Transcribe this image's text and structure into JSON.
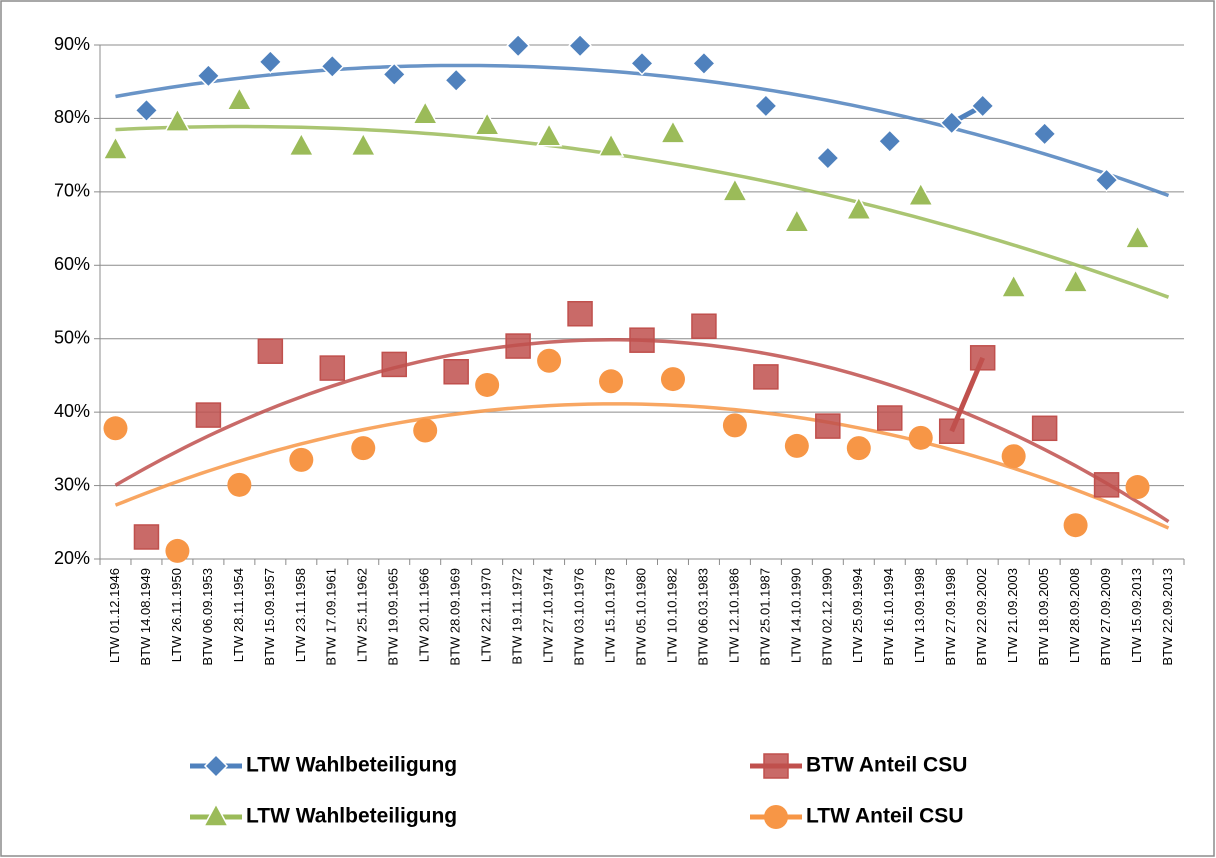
{
  "chart_data": {
    "type": "line",
    "categories": [
      "LTW 01.12.1946",
      "BTW 14.08.1949",
      "LTW 26.11.1950",
      "BTW 06.09.1953",
      "LTW 28.11.1954",
      "BTW 15.09.1957",
      "LTW 23.11.1958",
      "BTW 17.09.1961",
      "LTW 25.11.1962",
      "BTW 19.09.1965",
      "LTW 20.11.1966",
      "BTW 28.09.1969",
      "LTW 22.11.1970",
      "BTW 19.11.1972",
      "LTW 27.10.1974",
      "BTW 03.10.1976",
      "LTW 15.10.1978",
      "BTW 05.10.1980",
      "LTW 10.10.1982",
      "BTW 06.03.1983",
      "LTW 12.10.1986",
      "BTW 25.01.1987",
      "LTW 14.10.1990",
      "BTW 02.12.1990",
      "LTW 25.09.1994",
      "BTW 16.10.1994",
      "LTW 13.09.1998",
      "BTW 27.09.1998",
      "BTW 22.09.2002",
      "LTW 21.09.2003",
      "BTW 18.09.2005",
      "LTW 28.09.2008",
      "BTW 27.09.2009",
      "LTW 15.09.2013",
      "BTW 22.09.2013"
    ],
    "series": [
      {
        "name": "LTW Wahlbeteiligung",
        "color": "#4f81bd",
        "marker": "diamond",
        "values": [
          null,
          81.1,
          null,
          85.8,
          null,
          87.7,
          null,
          87.1,
          null,
          86.0,
          null,
          85.2,
          null,
          89.9,
          null,
          89.9,
          null,
          87.5,
          null,
          87.5,
          null,
          81.7,
          null,
          74.6,
          null,
          76.9,
          null,
          79.4,
          81.7,
          null,
          77.9,
          null,
          71.6,
          null,
          null
        ]
      },
      {
        "name": "BTW Anteil CSU",
        "color": "#c0504d",
        "marker": "square",
        "values": [
          null,
          23.0,
          null,
          39.6,
          null,
          48.3,
          null,
          46.0,
          null,
          46.5,
          null,
          45.5,
          null,
          49.0,
          null,
          53.4,
          null,
          49.8,
          null,
          51.7,
          null,
          44.8,
          null,
          38.1,
          null,
          39.2,
          null,
          37.4,
          47.4,
          null,
          37.8,
          null,
          30.1,
          null,
          null
        ]
      },
      {
        "name": "LTW Wahlbeteiligung",
        "color": "#9bbb59",
        "marker": "triangle",
        "values": [
          75.7,
          null,
          79.5,
          null,
          82.4,
          null,
          76.2,
          null,
          76.2,
          null,
          80.5,
          null,
          79.0,
          null,
          77.5,
          null,
          76.1,
          null,
          77.9,
          null,
          70.0,
          null,
          65.8,
          null,
          67.5,
          null,
          69.4,
          null,
          null,
          56.9,
          null,
          57.6,
          null,
          63.6,
          null
        ]
      },
      {
        "name": "LTW Anteil CSU",
        "color": "#f79646",
        "marker": "circle",
        "values": [
          37.8,
          null,
          21.1,
          null,
          30.1,
          null,
          33.5,
          null,
          35.1,
          null,
          37.5,
          null,
          43.7,
          null,
          47.0,
          null,
          44.2,
          null,
          44.5,
          null,
          38.2,
          null,
          35.4,
          null,
          35.1,
          null,
          36.5,
          null,
          null,
          34.0,
          null,
          24.6,
          null,
          29.8,
          null
        ]
      }
    ],
    "ylim": [
      20,
      90
    ],
    "yticks": [
      {
        "value": 20,
        "label": "20%"
      },
      {
        "value": 30,
        "label": "30%"
      },
      {
        "value": 40,
        "label": "40%"
      },
      {
        "value": 50,
        "label": "50%"
      },
      {
        "value": 60,
        "label": "60%"
      },
      {
        "value": 70,
        "label": "70%"
      },
      {
        "value": 80,
        "label": "80%"
      },
      {
        "value": 90,
        "label": "90%"
      }
    ],
    "grid": true,
    "trendline": "polynomial-2",
    "legend": "bottom"
  }
}
